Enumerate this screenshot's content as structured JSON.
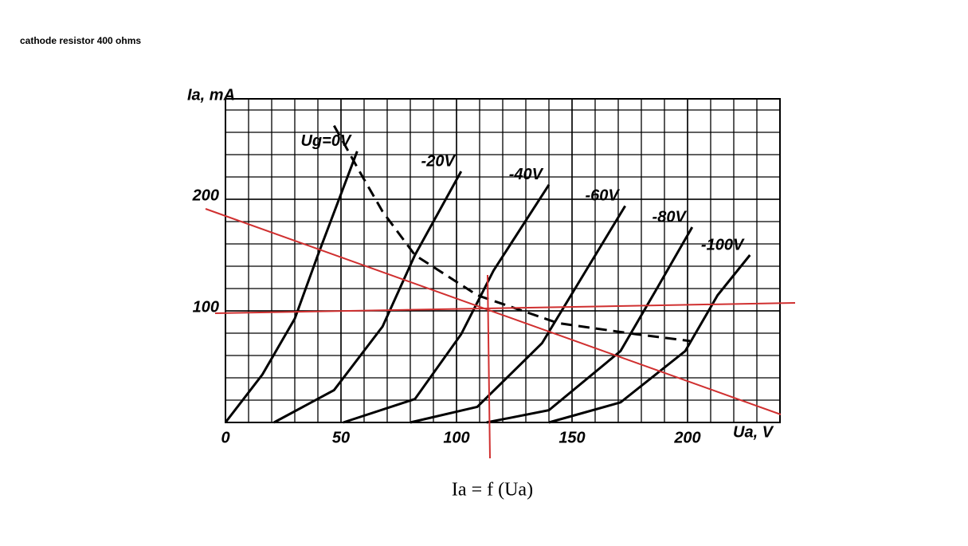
{
  "note": "cathode resistor 400 ohms",
  "caption": "Ia = f (Ua)",
  "chart_data": {
    "type": "line",
    "xlabel": "Ua, V",
    "ylabel": "Ia, mA",
    "xlim": [
      0,
      240
    ],
    "ylim": [
      0,
      290
    ],
    "xticks": [
      0,
      50,
      100,
      150,
      200
    ],
    "yticks": [
      100,
      200
    ],
    "grid": true,
    "series": [
      {
        "name": "Ug=0V",
        "color": "#000000",
        "x": [
          0,
          16,
          30,
          40,
          57
        ],
        "values": [
          0,
          43,
          93,
          150,
          243
        ]
      },
      {
        "name": "-20V",
        "color": "#000000",
        "x": [
          21,
          47,
          68,
          82,
          102
        ],
        "values": [
          0,
          29,
          86,
          150,
          225
        ]
      },
      {
        "name": "-40V",
        "color": "#000000",
        "x": [
          51,
          82,
          102,
          116,
          140
        ],
        "values": [
          0,
          21,
          79,
          136,
          213
        ]
      },
      {
        "name": "-60V",
        "color": "#000000",
        "x": [
          80,
          109,
          137,
          156,
          173
        ],
        "values": [
          0,
          14,
          71,
          136,
          194
        ]
      },
      {
        "name": "-80V",
        "color": "#000000",
        "x": [
          113,
          140,
          171,
          187,
          202
        ],
        "values": [
          0,
          11,
          64,
          121,
          175
        ]
      },
      {
        "name": "-100V",
        "color": "#000000",
        "x": [
          140,
          171,
          199,
          213,
          227
        ],
        "values": [
          0,
          18,
          64,
          114,
          150
        ]
      }
    ],
    "dashed": {
      "color": "#000000",
      "x": [
        47,
        58,
        68,
        82,
        109,
        144,
        178,
        201
      ],
      "values": [
        266,
        225,
        189,
        150,
        114,
        89,
        79,
        73
      ]
    }
  }
}
